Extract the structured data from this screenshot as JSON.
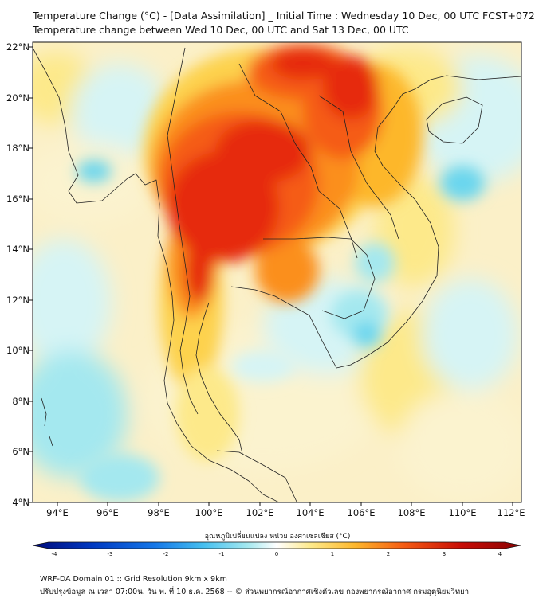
{
  "title": {
    "line1": "Temperature Change (°C) - [Data Assimilation] _ Initial Time : Wednesday 10 Dec, 00 UTC FCST+072",
    "line2": "Temperature change between Wed 10 Dec, 00 UTC and Sat 13 Dec, 00 UTC"
  },
  "axes": {
    "lat_labels": [
      "22°N",
      "20°N",
      "18°N",
      "16°N",
      "14°N",
      "12°N",
      "10°N",
      "8°N",
      "6°N",
      "4°N"
    ],
    "lon_labels": [
      "94°E",
      "96°E",
      "98°E",
      "100°E",
      "102°E",
      "104°E",
      "106°E",
      "108°E",
      "110°E",
      "112°E"
    ]
  },
  "colorbar": {
    "title": "อุณหภูมิเปลี่ยนแปลง หน่วย องศาเซลเซียส (°C)",
    "tick_labels": [
      "-4",
      "-3",
      "-2",
      "-1",
      "0",
      "1",
      "2",
      "3",
      "4"
    ],
    "colors": [
      "#000a7a",
      "#00209c",
      "#0038c0",
      "#0a55d8",
      "#1577e8",
      "#2e9ef0",
      "#45bfef",
      "#6bd6ee",
      "#a4e8ef",
      "#d6f4f5",
      "#ffffff",
      "#fdf6c0",
      "#fde98a",
      "#fdd24e",
      "#fdb72c",
      "#fb8f1d",
      "#f55c13",
      "#e62b0b",
      "#c70c06",
      "#8a0303"
    ]
  },
  "footer": {
    "line1": "WRF-DA Domain 01 :: Grid Resolution 9km x 9km",
    "line2": "ปรับปรุงข้อมูล ณ เวลา 07:00น. วัน พ. ที่ 10 ธ.ค. 2568 -- © ส่วนพยากรณ์อากาศเชิงตัวเลข กองพยากรณ์อากาศ กรมอุตุนิยมวิทยา"
  }
}
